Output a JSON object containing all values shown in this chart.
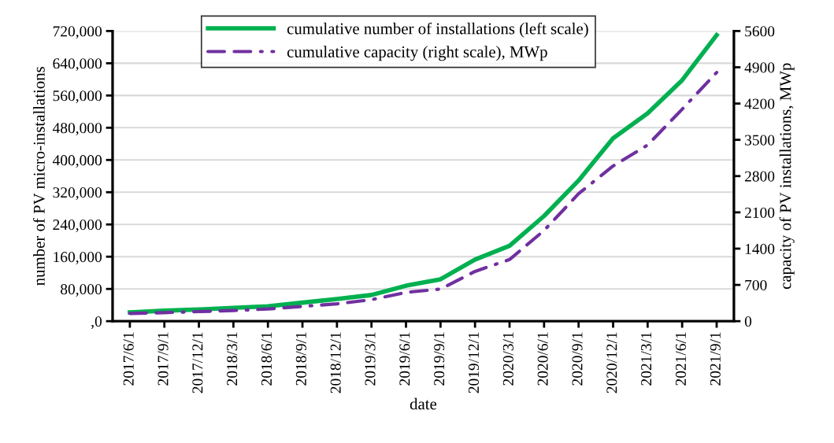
{
  "chart_data": {
    "type": "line",
    "categories": [
      "2017/6/1",
      "2017/9/1",
      "2017/12/1",
      "2018/3/1",
      "2018/6/1",
      "2018/9/1",
      "2018/12/1",
      "2019/3/1",
      "2019/6/1",
      "2019/9/1",
      "2019/12/1",
      "2020/3/1",
      "2020/6/1",
      "2020/9/1",
      "2020/12/1",
      "2021/3/1",
      "2021/6/1",
      "2021/9/1"
    ],
    "series": [
      {
        "name": "cumulative number of installations (left scale)",
        "color": "#00b050",
        "line_style": "solid",
        "values": [
          22000,
          26000,
          29000,
          33000,
          37000,
          46000,
          55000,
          65000,
          88000,
          104000,
          153000,
          187000,
          261000,
          349000,
          454000,
          516000,
          598000,
          710000
        ]
      },
      {
        "name": "cumulative capacity (right scale), MWp",
        "color": "#7030a0",
        "line_style": "dashed",
        "axis": "y2",
        "values": [
          150,
          165,
          185,
          205,
          235,
          285,
          335,
          415,
          555,
          620,
          960,
          1190,
          1750,
          2460,
          2995,
          3400,
          4090,
          4800
        ]
      }
    ],
    "xlabel": "date",
    "ylabel": "number of PV micro-installations",
    "y2label": "capacity of PV installations, MWp",
    "ylim": [
      0,
      720000
    ],
    "yticks": [
      {
        "value": 0,
        "label": ",0"
      },
      {
        "value": 80000,
        "label": "80,000"
      },
      {
        "value": 160000,
        "label": "160,000"
      },
      {
        "value": 240000,
        "label": "240,000"
      },
      {
        "value": 320000,
        "label": "320,000"
      },
      {
        "value": 400000,
        "label": "400,000"
      },
      {
        "value": 480000,
        "label": "480,000"
      },
      {
        "value": 560000,
        "label": "560,000"
      },
      {
        "value": 640000,
        "label": "640,000"
      },
      {
        "value": 720000,
        "label": "720,000"
      }
    ],
    "y2lim": [
      0,
      5600
    ],
    "y2ticks": [
      0,
      700,
      1400,
      2100,
      2800,
      3500,
      4200,
      4900,
      5600
    ],
    "grid": "y",
    "legend": "top",
    "marker": "none"
  }
}
